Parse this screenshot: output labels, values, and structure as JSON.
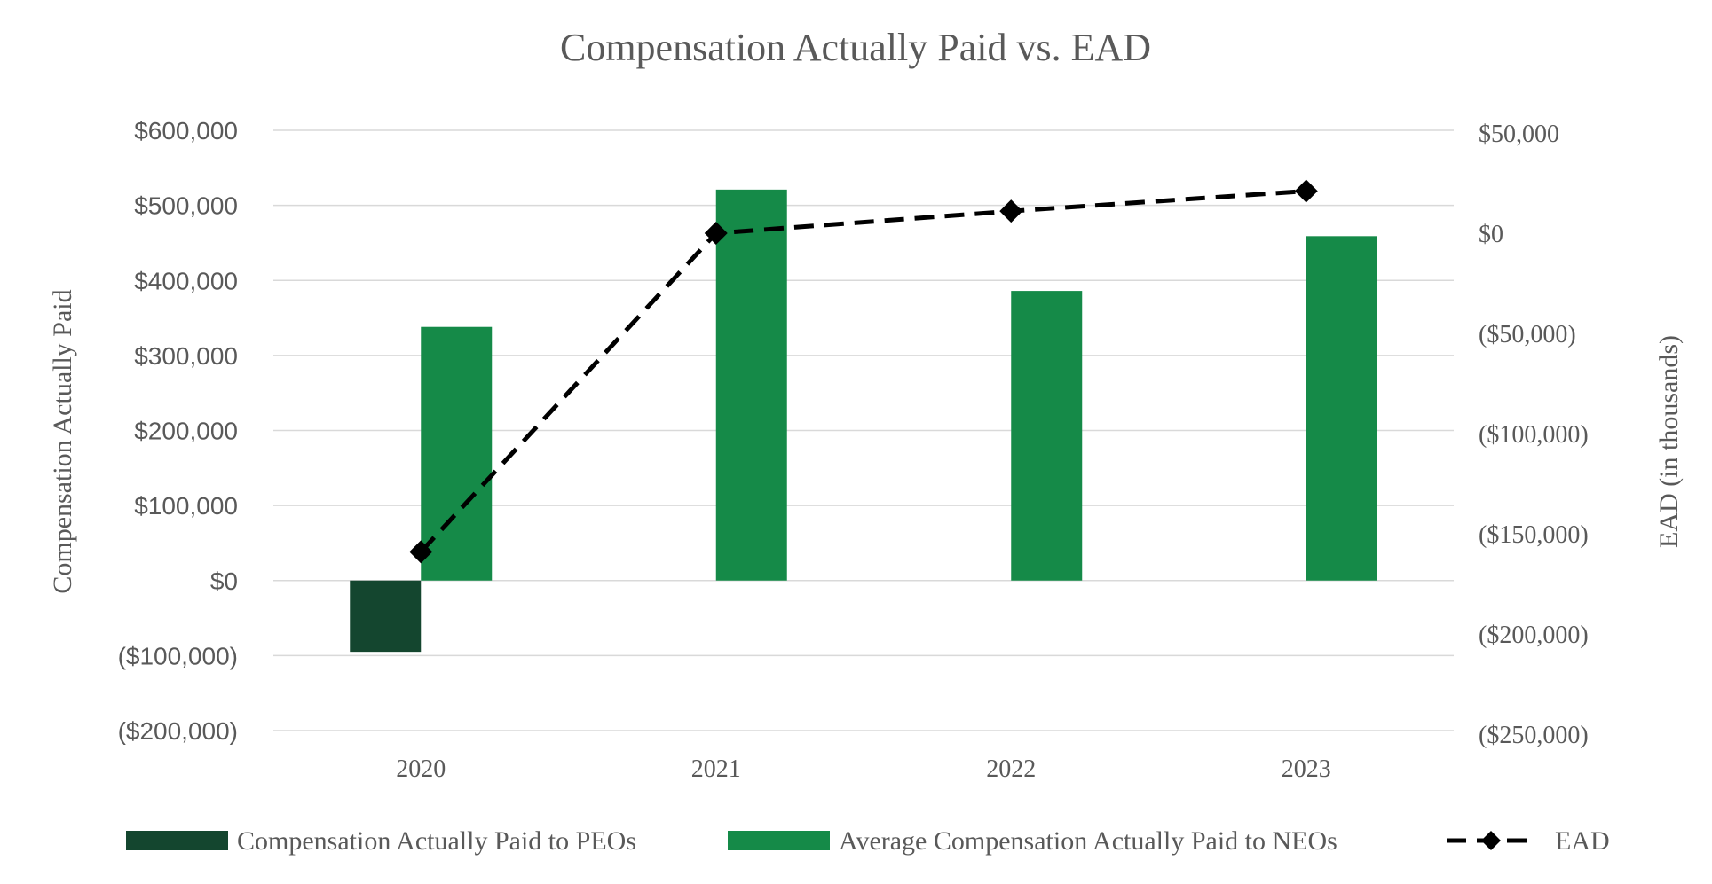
{
  "chart_data": {
    "type": "bar",
    "title": "Compensation Actually Paid vs. EAD",
    "categories": [
      "2020",
      "2021",
      "2022",
      "2023"
    ],
    "ylabel": "Compensation Actually Paid",
    "y2label": "EAD (in thousands)",
    "ylim": [
      -200000,
      600000
    ],
    "y2lim": [
      -250000,
      50000
    ],
    "yticks": [
      "$600,000",
      "$500,000",
      "$400,000",
      "$300,000",
      "$200,000",
      "$100,000",
      "$0",
      "($100,000)",
      "($200,000)"
    ],
    "yticks_values": [
      600000,
      500000,
      400000,
      300000,
      200000,
      100000,
      0,
      -100000,
      -200000
    ],
    "y2ticks": [
      "$50,000",
      "$0",
      "($50,000)",
      "($100,000)",
      "($150,000)",
      "($200,000)",
      "($250,000)"
    ],
    "y2ticks_values": [
      50000,
      0,
      -50000,
      -100000,
      -150000,
      -200000,
      -250000
    ],
    "grid": true,
    "legend_position": "bottom",
    "series": [
      {
        "name": "Compensation Actually Paid to PEOs",
        "type": "bar",
        "axis": "left",
        "color": "#14462F",
        "values": [
          -95000,
          null,
          null,
          null
        ]
      },
      {
        "name": "Average Compensation Actually Paid to NEOs",
        "type": "bar",
        "axis": "left",
        "color": "#158A48",
        "values": [
          338000,
          521000,
          386000,
          459000
        ]
      },
      {
        "name": "EAD",
        "type": "line",
        "axis": "right",
        "color": "#000000",
        "line_style": "dashed",
        "marker": "diamond",
        "values": [
          -159000,
          0,
          11000,
          21000
        ]
      }
    ]
  }
}
